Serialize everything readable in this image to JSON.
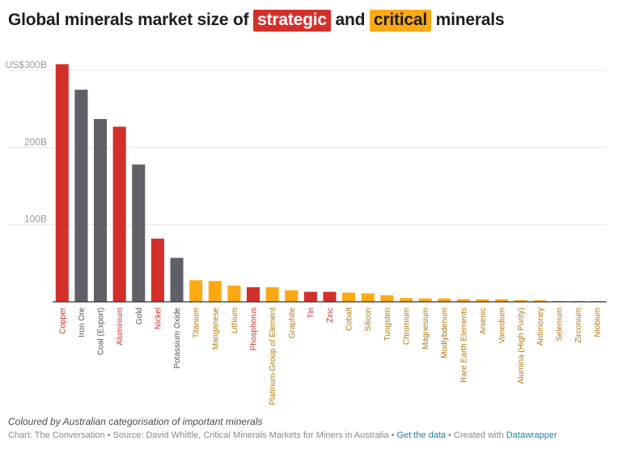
{
  "header": {
    "title_prefix": "Global minerals market size of",
    "title_strategic": "strategic",
    "title_mid": "and",
    "title_critical": "critical",
    "title_suffix": "minerals"
  },
  "colors": {
    "strategic": "#d4302b",
    "critical": "#fea914",
    "other": "#5f6068",
    "label_strategic": "#c8322e",
    "label_critical": "#b0780f",
    "label_other": "#555555"
  },
  "chart_data": {
    "type": "bar",
    "title": "Global minerals market size of strategic and critical minerals",
    "xlabel": "",
    "ylabel": "",
    "ylim": [
      0,
      300
    ],
    "yunit": "US$ billions",
    "yticks": [
      {
        "value": 100,
        "label": "100B"
      },
      {
        "value": 200,
        "label": "200B"
      },
      {
        "value": 300,
        "label": "US$300B"
      }
    ],
    "grid": true,
    "categories": [
      "Copper",
      "Iron Ore",
      "Coal (Export)",
      "Aluminium",
      "Gold",
      "Nickel",
      "Potassium Oxide",
      "Titanium",
      "Manganese",
      "Lithium",
      "Phosphorus",
      "Platinum-Group of Element",
      "Graphite",
      "Tin",
      "Zinc",
      "Cobalt",
      "Silicon",
      "Tungsten",
      "Chromium",
      "Magnesium",
      "Modlybdenum",
      "Rare Earth Elements",
      "Arsenic",
      "Vanedium",
      "Alumina (High Purity)",
      "Antimoney",
      "Selenium",
      "Zirconium",
      "Niobium"
    ],
    "values": [
      308,
      275,
      237,
      227,
      178,
      82,
      57,
      28,
      27,
      21,
      19,
      19,
      15,
      13,
      13,
      12,
      11,
      8.5,
      5,
      4.5,
      4.5,
      3.5,
      3.3,
      3.2,
      2.2,
      2,
      1.2,
      1.1,
      1
    ],
    "groups": [
      "strategic",
      "other",
      "other",
      "strategic",
      "other",
      "strategic",
      "other",
      "critical",
      "critical",
      "critical",
      "strategic",
      "critical",
      "critical",
      "strategic",
      "strategic",
      "critical",
      "critical",
      "critical",
      "critical",
      "critical",
      "critical",
      "critical",
      "critical",
      "critical",
      "critical",
      "critical",
      "critical",
      "critical",
      "critical"
    ]
  },
  "notes": "Coloured by Australian categorisation of important minerals",
  "footer": {
    "chart_credit": "Chart: The Conversation",
    "sep": "•",
    "source": "Source: David Whittle, Critical Minerals Markets for Miners in Australia",
    "get_data": "Get the data",
    "created_with": "Created with",
    "datawrapper": "Datawrapper"
  }
}
